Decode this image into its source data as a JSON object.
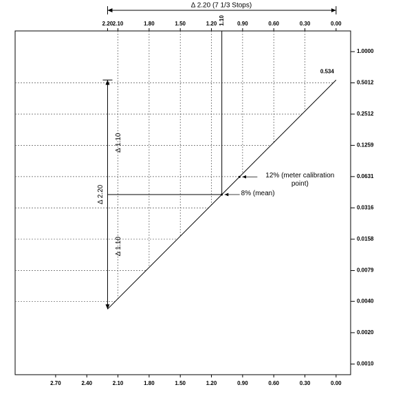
{
  "chart_data": {
    "type": "line",
    "title": "Δ 2.20 (7 1/3 Stops)",
    "xlim": [
      3.09,
      -0.14
    ],
    "xticks": [
      {
        "value": 2.7,
        "label": "2.70"
      },
      {
        "value": 2.4,
        "label": "2.40"
      },
      {
        "value": 2.1,
        "label": "2.10"
      },
      {
        "value": 1.8,
        "label": "1.80"
      },
      {
        "value": 1.5,
        "label": "1.50"
      },
      {
        "value": 1.2,
        "label": "1.20"
      },
      {
        "value": 0.9,
        "label": "0.90"
      },
      {
        "value": 0.6,
        "label": "0.60"
      },
      {
        "value": 0.3,
        "label": "0.30"
      },
      {
        "value": 0,
        "label": "0.00"
      }
    ],
    "x2ticks": [
      {
        "value": 2.2,
        "label": "2.20"
      },
      {
        "value": 2.1,
        "label": "2.10"
      },
      {
        "value": 1.8,
        "label": "1.80"
      },
      {
        "value": 1.5,
        "label": "1.50"
      },
      {
        "value": 1.2,
        "label": "1.20"
      },
      {
        "value": 0.9,
        "label": "0.90"
      },
      {
        "value": 0.6,
        "label": "0.60"
      },
      {
        "value": 0.3,
        "label": "0.30"
      },
      {
        "value": 0,
        "label": "0.00"
      }
    ],
    "x2_marker": {
      "value": 1.1,
      "label": "1.10"
    },
    "ylim": [
      0.00079,
      1.58
    ],
    "log_y": true,
    "yticks": [
      {
        "value": 1,
        "label": "1.0000"
      },
      0.5012,
      0.2512,
      0.1259,
      0.0631,
      0.0316,
      0.0158,
      0.0079,
      {
        "value": 0.004,
        "label": "0.0040"
      },
      {
        "value": 0.002,
        "label": "0.0020"
      },
      {
        "value": 0.001,
        "label": "0.0010"
      }
    ],
    "series": [
      {
        "color": "#000000",
        "x": [
          2.2,
          0
        ],
        "values": [
          0.00337,
          0.534
        ],
        "value_labels": [
          null,
          "0.534"
        ]
      }
    ],
    "annotations": [
      {
        "text": "12% (meter calibration point)",
        "x": 0.93,
        "y": 0.0627
      },
      {
        "text": "8% (mean)",
        "x": 1.1,
        "y": 0.0424
      }
    ],
    "span_labels": [
      "Δ 2.20",
      "Δ 1.10",
      "Δ 1.10"
    ]
  }
}
